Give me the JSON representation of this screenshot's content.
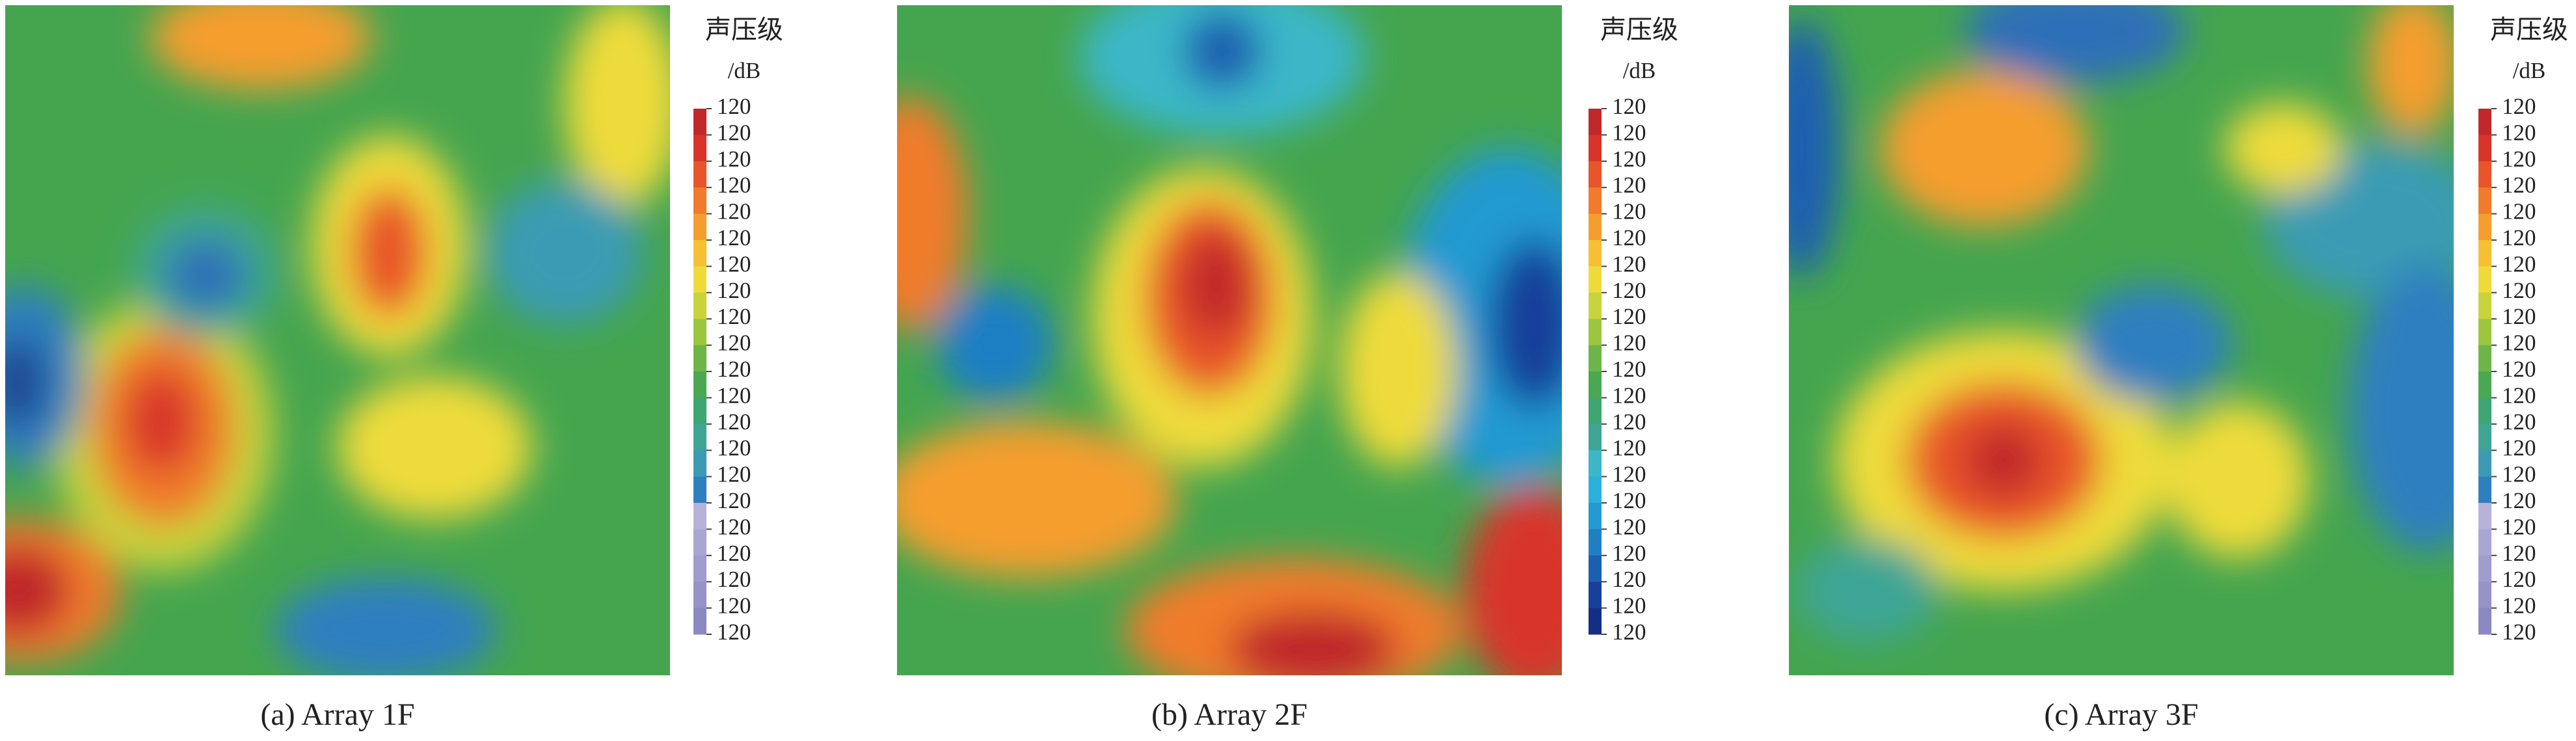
{
  "chart_data": [
    {
      "type": "heatmap",
      "caption": "(a) Array 1F",
      "colorbar_title": "声压级",
      "colorbar_unit": "/dB",
      "levels": [
        120,
        120,
        120,
        120,
        120,
        120,
        120,
        120,
        120,
        120,
        120,
        120,
        120,
        120,
        120,
        120,
        120,
        120,
        120,
        120,
        120
      ],
      "level_colors": [
        "#c0282a",
        "#d8342a",
        "#e8552a",
        "#f07b2a",
        "#f59e2f",
        "#f6bf34",
        "#eedb3a",
        "#c9d33c",
        "#9cc63e",
        "#6db548",
        "#4aa852",
        "#3fa572",
        "#3ea595",
        "#3b9bb4",
        "#2f7fc0",
        "#b7b3d8",
        "#aaa6d2",
        "#a09ccd",
        "#9793c8",
        "#8c88c2"
      ]
    },
    {
      "type": "heatmap",
      "caption": "(b) Array 2F",
      "colorbar_title": "声压级",
      "colorbar_unit": "/dB",
      "levels": [
        120,
        120,
        120,
        120,
        120,
        120,
        120,
        120,
        120,
        120,
        120,
        120,
        120,
        120,
        120,
        120,
        120,
        120,
        120,
        120,
        120
      ],
      "level_colors": [
        "#c0282a",
        "#d8342a",
        "#e8552a",
        "#f07b2a",
        "#f59e2f",
        "#f6bf34",
        "#eedb3a",
        "#c9d33c",
        "#9cc63e",
        "#6db548",
        "#4aa852",
        "#3fa572",
        "#3ea595",
        "#3bb7c8",
        "#2bb0dc",
        "#249ad2",
        "#1f7fc4",
        "#1c5fb0",
        "#17409a",
        "#142d85"
      ]
    },
    {
      "type": "heatmap",
      "caption": "(c) Array 3F",
      "colorbar_title": "声压级",
      "colorbar_unit": "/dB",
      "levels": [
        120,
        120,
        120,
        120,
        120,
        120,
        120,
        120,
        120,
        120,
        120,
        120,
        120,
        120,
        120,
        120,
        120,
        120,
        120,
        120,
        120
      ],
      "level_colors": [
        "#c0282a",
        "#d8342a",
        "#e8552a",
        "#f07b2a",
        "#f59e2f",
        "#f6bf34",
        "#eedb3a",
        "#c9d33c",
        "#9cc63e",
        "#6db548",
        "#4aa852",
        "#3fa572",
        "#3ea595",
        "#3b9bb4",
        "#2f7fc0",
        "#b7b3d8",
        "#aaa6d2",
        "#a09ccd",
        "#9793c8",
        "#8c88c2"
      ]
    }
  ]
}
